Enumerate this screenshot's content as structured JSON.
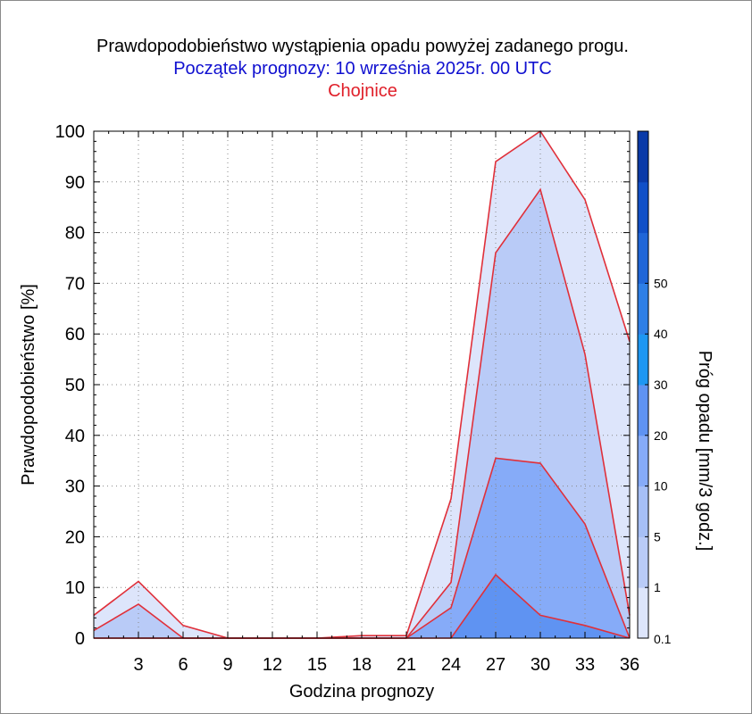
{
  "chart_data": {
    "type": "area",
    "title": "Prawdopodobieństwo wystąpienia opadu powyżej zadanego progu.",
    "subtitle": "Początek prognozy: 10 września 2025r. 00 UTC",
    "location": "Chojnice",
    "xlabel": "Godzina prognozy",
    "ylabel": "Prawdopodobieństwo [%]",
    "xlim": [
      0,
      36
    ],
    "ylim": [
      0,
      100
    ],
    "xticks": [
      3,
      6,
      9,
      12,
      15,
      18,
      21,
      24,
      27,
      30,
      33,
      36
    ],
    "yticks": [
      0,
      10,
      20,
      30,
      40,
      50,
      60,
      70,
      80,
      90,
      100
    ],
    "x": [
      0,
      3,
      6,
      9,
      12,
      15,
      18,
      21,
      24,
      27,
      30,
      33,
      36
    ],
    "series": [
      {
        "name": "0.1",
        "color": "#dde5fb",
        "values": [
          4.5,
          11.2,
          2.5,
          0,
          0,
          0,
          0.5,
          0.5,
          27.5,
          94,
          100,
          86.5,
          58.5
        ]
      },
      {
        "name": "1",
        "color": "#b9cbf7",
        "values": [
          1.5,
          6.7,
          0,
          0,
          0,
          0,
          0,
          0,
          11,
          76,
          88.5,
          56,
          4.5
        ]
      },
      {
        "name": "5",
        "color": "#86abf8",
        "values": [
          0,
          0,
          0,
          0,
          0,
          0,
          0,
          0,
          6,
          35.5,
          34.5,
          22.5,
          0
        ]
      },
      {
        "name": "10",
        "color": "#5f93f2",
        "values": [
          0,
          0,
          0,
          0,
          0,
          0,
          0,
          0,
          0,
          12.5,
          4.5,
          2.5,
          0
        ]
      }
    ],
    "line_color": "#e0303a",
    "grid": true,
    "colorbar": {
      "label": "Próg opadu [mm/3 godz.]",
      "ticks": [
        "0.1",
        "1",
        "5",
        "10",
        "20",
        "30",
        "40",
        "50"
      ],
      "colors": [
        "#dde5fb",
        "#b9cbf7",
        "#a6bff6",
        "#86abf8",
        "#5f93f2",
        "#1e97f2",
        "#2e7fe6",
        "#1f66d8",
        "#1050c8",
        "#0a3aa8"
      ]
    }
  }
}
